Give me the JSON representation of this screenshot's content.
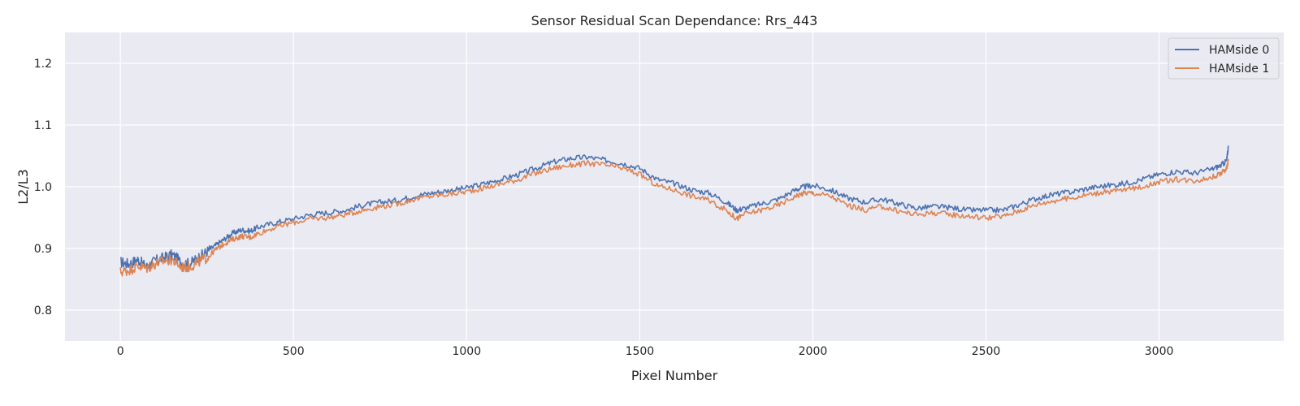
{
  "chart_data": {
    "type": "line",
    "title": "Sensor Residual Scan Dependance: Rrs_443",
    "xlabel": "Pixel Number",
    "ylabel": "L2/L3",
    "xlim": [
      -160,
      3360
    ],
    "ylim": [
      0.75,
      1.25
    ],
    "xticks": [
      0,
      500,
      1000,
      1500,
      2000,
      2500,
      3000
    ],
    "xtick_labels": [
      "0",
      "500",
      "1000",
      "1500",
      "2000",
      "2500",
      "3000"
    ],
    "yticks": [
      0.8,
      0.9,
      1.0,
      1.1,
      1.2
    ],
    "ytick_labels": [
      "0.8",
      "0.9",
      "1.0",
      "1.1",
      "1.2"
    ],
    "grid": true,
    "legend_position": "top-right",
    "series": [
      {
        "name": "HAMside 0",
        "color": "#4c72b0",
        "x": [
          0,
          25,
          50,
          75,
          100,
          125,
          150,
          175,
          200,
          225,
          250,
          275,
          300,
          325,
          350,
          375,
          400,
          450,
          500,
          550,
          600,
          650,
          700,
          750,
          800,
          850,
          900,
          950,
          1000,
          1050,
          1100,
          1150,
          1200,
          1250,
          1300,
          1350,
          1400,
          1450,
          1500,
          1550,
          1600,
          1650,
          1700,
          1750,
          1780,
          1800,
          1850,
          1900,
          1950,
          1975,
          2000,
          2050,
          2100,
          2150,
          2200,
          2250,
          2300,
          2350,
          2400,
          2450,
          2500,
          2550,
          2600,
          2650,
          2700,
          2750,
          2800,
          2850,
          2900,
          2950,
          3000,
          3050,
          3100,
          3150,
          3180,
          3195,
          3200
        ],
        "y": [
          0.878,
          0.875,
          0.882,
          0.87,
          0.88,
          0.885,
          0.89,
          0.878,
          0.875,
          0.885,
          0.895,
          0.905,
          0.915,
          0.925,
          0.93,
          0.928,
          0.935,
          0.942,
          0.948,
          0.955,
          0.958,
          0.962,
          0.97,
          0.975,
          0.978,
          0.985,
          0.99,
          0.994,
          0.998,
          1.005,
          1.012,
          1.02,
          1.03,
          1.04,
          1.046,
          1.048,
          1.043,
          1.038,
          1.03,
          1.012,
          1.005,
          0.995,
          0.99,
          0.975,
          0.962,
          0.965,
          0.972,
          0.98,
          0.995,
          1.0,
          1.002,
          0.995,
          0.982,
          0.975,
          0.98,
          0.972,
          0.965,
          0.968,
          0.966,
          0.962,
          0.962,
          0.962,
          0.972,
          0.982,
          0.988,
          0.992,
          0.998,
          1.002,
          1.005,
          1.012,
          1.02,
          1.025,
          1.022,
          1.028,
          1.035,
          1.042,
          1.065
        ]
      },
      {
        "name": "HAMside 1",
        "color": "#dd8452",
        "x": [
          0,
          25,
          50,
          75,
          100,
          125,
          150,
          175,
          200,
          225,
          250,
          275,
          300,
          325,
          350,
          375,
          400,
          450,
          500,
          550,
          600,
          650,
          700,
          750,
          800,
          850,
          900,
          950,
          1000,
          1050,
          1100,
          1150,
          1200,
          1250,
          1300,
          1350,
          1400,
          1450,
          1500,
          1550,
          1600,
          1650,
          1700,
          1750,
          1780,
          1800,
          1850,
          1900,
          1950,
          1975,
          2000,
          2050,
          2100,
          2150,
          2200,
          2250,
          2300,
          2350,
          2400,
          2450,
          2500,
          2550,
          2600,
          2650,
          2700,
          2750,
          2800,
          2850,
          2900,
          2950,
          3000,
          3050,
          3100,
          3150,
          3180,
          3195,
          3200
        ],
        "y": [
          0.862,
          0.865,
          0.872,
          0.868,
          0.875,
          0.88,
          0.882,
          0.87,
          0.87,
          0.878,
          0.885,
          0.898,
          0.908,
          0.915,
          0.92,
          0.918,
          0.925,
          0.935,
          0.942,
          0.948,
          0.95,
          0.955,
          0.962,
          0.968,
          0.972,
          0.98,
          0.985,
          0.988,
          0.992,
          0.998,
          1.005,
          1.012,
          1.022,
          1.03,
          1.035,
          1.038,
          1.035,
          1.03,
          1.02,
          1.002,
          0.995,
          0.985,
          0.978,
          0.962,
          0.948,
          0.955,
          0.962,
          0.97,
          0.985,
          0.99,
          0.99,
          0.985,
          0.97,
          0.962,
          0.968,
          0.96,
          0.955,
          0.958,
          0.955,
          0.952,
          0.95,
          0.952,
          0.962,
          0.972,
          0.978,
          0.982,
          0.988,
          0.992,
          0.995,
          1.0,
          1.008,
          1.012,
          1.01,
          1.015,
          1.022,
          1.03,
          1.042
        ]
      }
    ]
  }
}
